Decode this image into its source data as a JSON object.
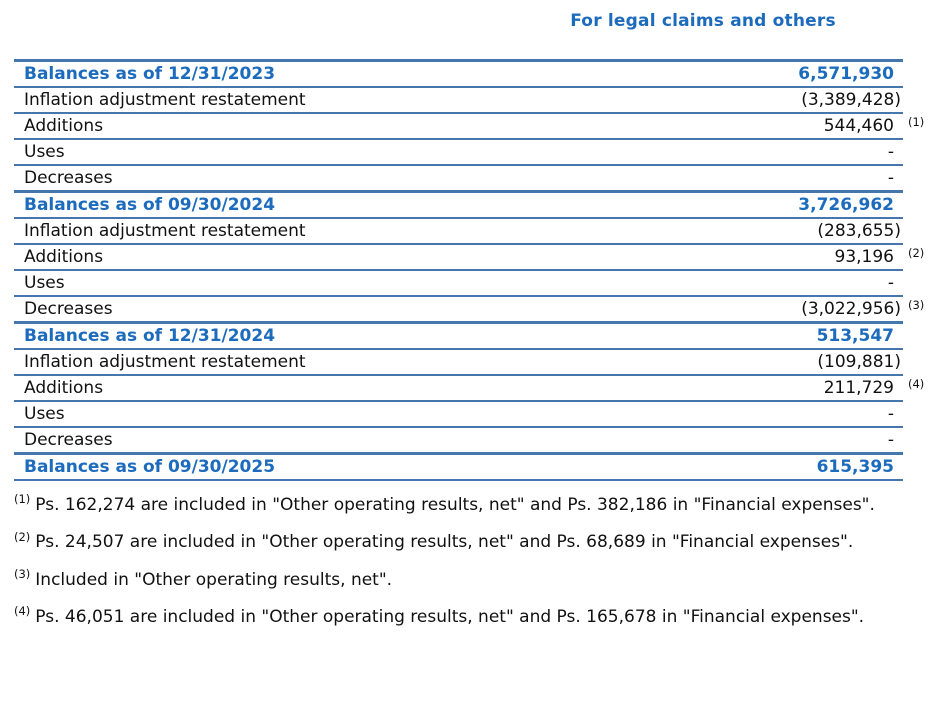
{
  "header": {
    "title": "For legal claims and others"
  },
  "table": {
    "rows": [
      {
        "label": "Balances as of 12/31/2023",
        "value": "6,571,930",
        "note": "",
        "type": "balance"
      },
      {
        "label": "Inflation adjustment restatement",
        "value": "(3,389,428)",
        "note": "",
        "type": "regular"
      },
      {
        "label": "Additions",
        "value": "544,460",
        "note": "(1)",
        "type": "regular"
      },
      {
        "label": "Uses",
        "value": "-",
        "note": "",
        "type": "regular"
      },
      {
        "label": "Decreases",
        "value": "-",
        "note": "",
        "type": "regular"
      },
      {
        "label": "Balances as of 09/30/2024",
        "value": "3,726,962",
        "note": "",
        "type": "balance"
      },
      {
        "label": "Inflation adjustment restatement",
        "value": "(283,655)",
        "note": "",
        "type": "regular"
      },
      {
        "label": "Additions",
        "value": "93,196",
        "note": "(2)",
        "type": "regular"
      },
      {
        "label": "Uses",
        "value": "-",
        "note": "",
        "type": "regular"
      },
      {
        "label": "Decreases",
        "value": "(3,022,956)",
        "note": "(3)",
        "type": "regular"
      },
      {
        "label": "Balances as of 12/31/2024",
        "value": "513,547",
        "note": "",
        "type": "balance"
      },
      {
        "label": "Inflation adjustment restatement",
        "value": "(109,881)",
        "note": "",
        "type": "regular"
      },
      {
        "label": "Additions",
        "value": "211,729",
        "note": "(4)",
        "type": "regular"
      },
      {
        "label": "Uses",
        "value": "-",
        "note": "",
        "type": "regular"
      },
      {
        "label": "Decreases",
        "value": "-",
        "note": "",
        "type": "regular"
      },
      {
        "label": "Balances as of 09/30/2025",
        "value": "615,395",
        "note": "",
        "type": "balance"
      }
    ]
  },
  "footnotes": [
    {
      "marker": "(1)",
      "text": "Ps. 162,274 are included in \"Other operating results, net\" and Ps. 382,186 in \"Financial expenses\"."
    },
    {
      "marker": "(2)",
      "text": "Ps. 24,507 are included in \"Other operating results, net\" and Ps. 68,689 in \"Financial expenses\"."
    },
    {
      "marker": "(3)",
      "text": "Included in \"Other operating results, net\"."
    },
    {
      "marker": "(4)",
      "text": "Ps. 46,051 are included in \"Other operating results, net\" and Ps. 165,678 in \"Financial expenses\"."
    }
  ],
  "colors": {
    "accent_blue_text": "#1c6bbd",
    "rule_blue": "#4576ad",
    "body_text": "#111111",
    "background": "#ffffff"
  }
}
